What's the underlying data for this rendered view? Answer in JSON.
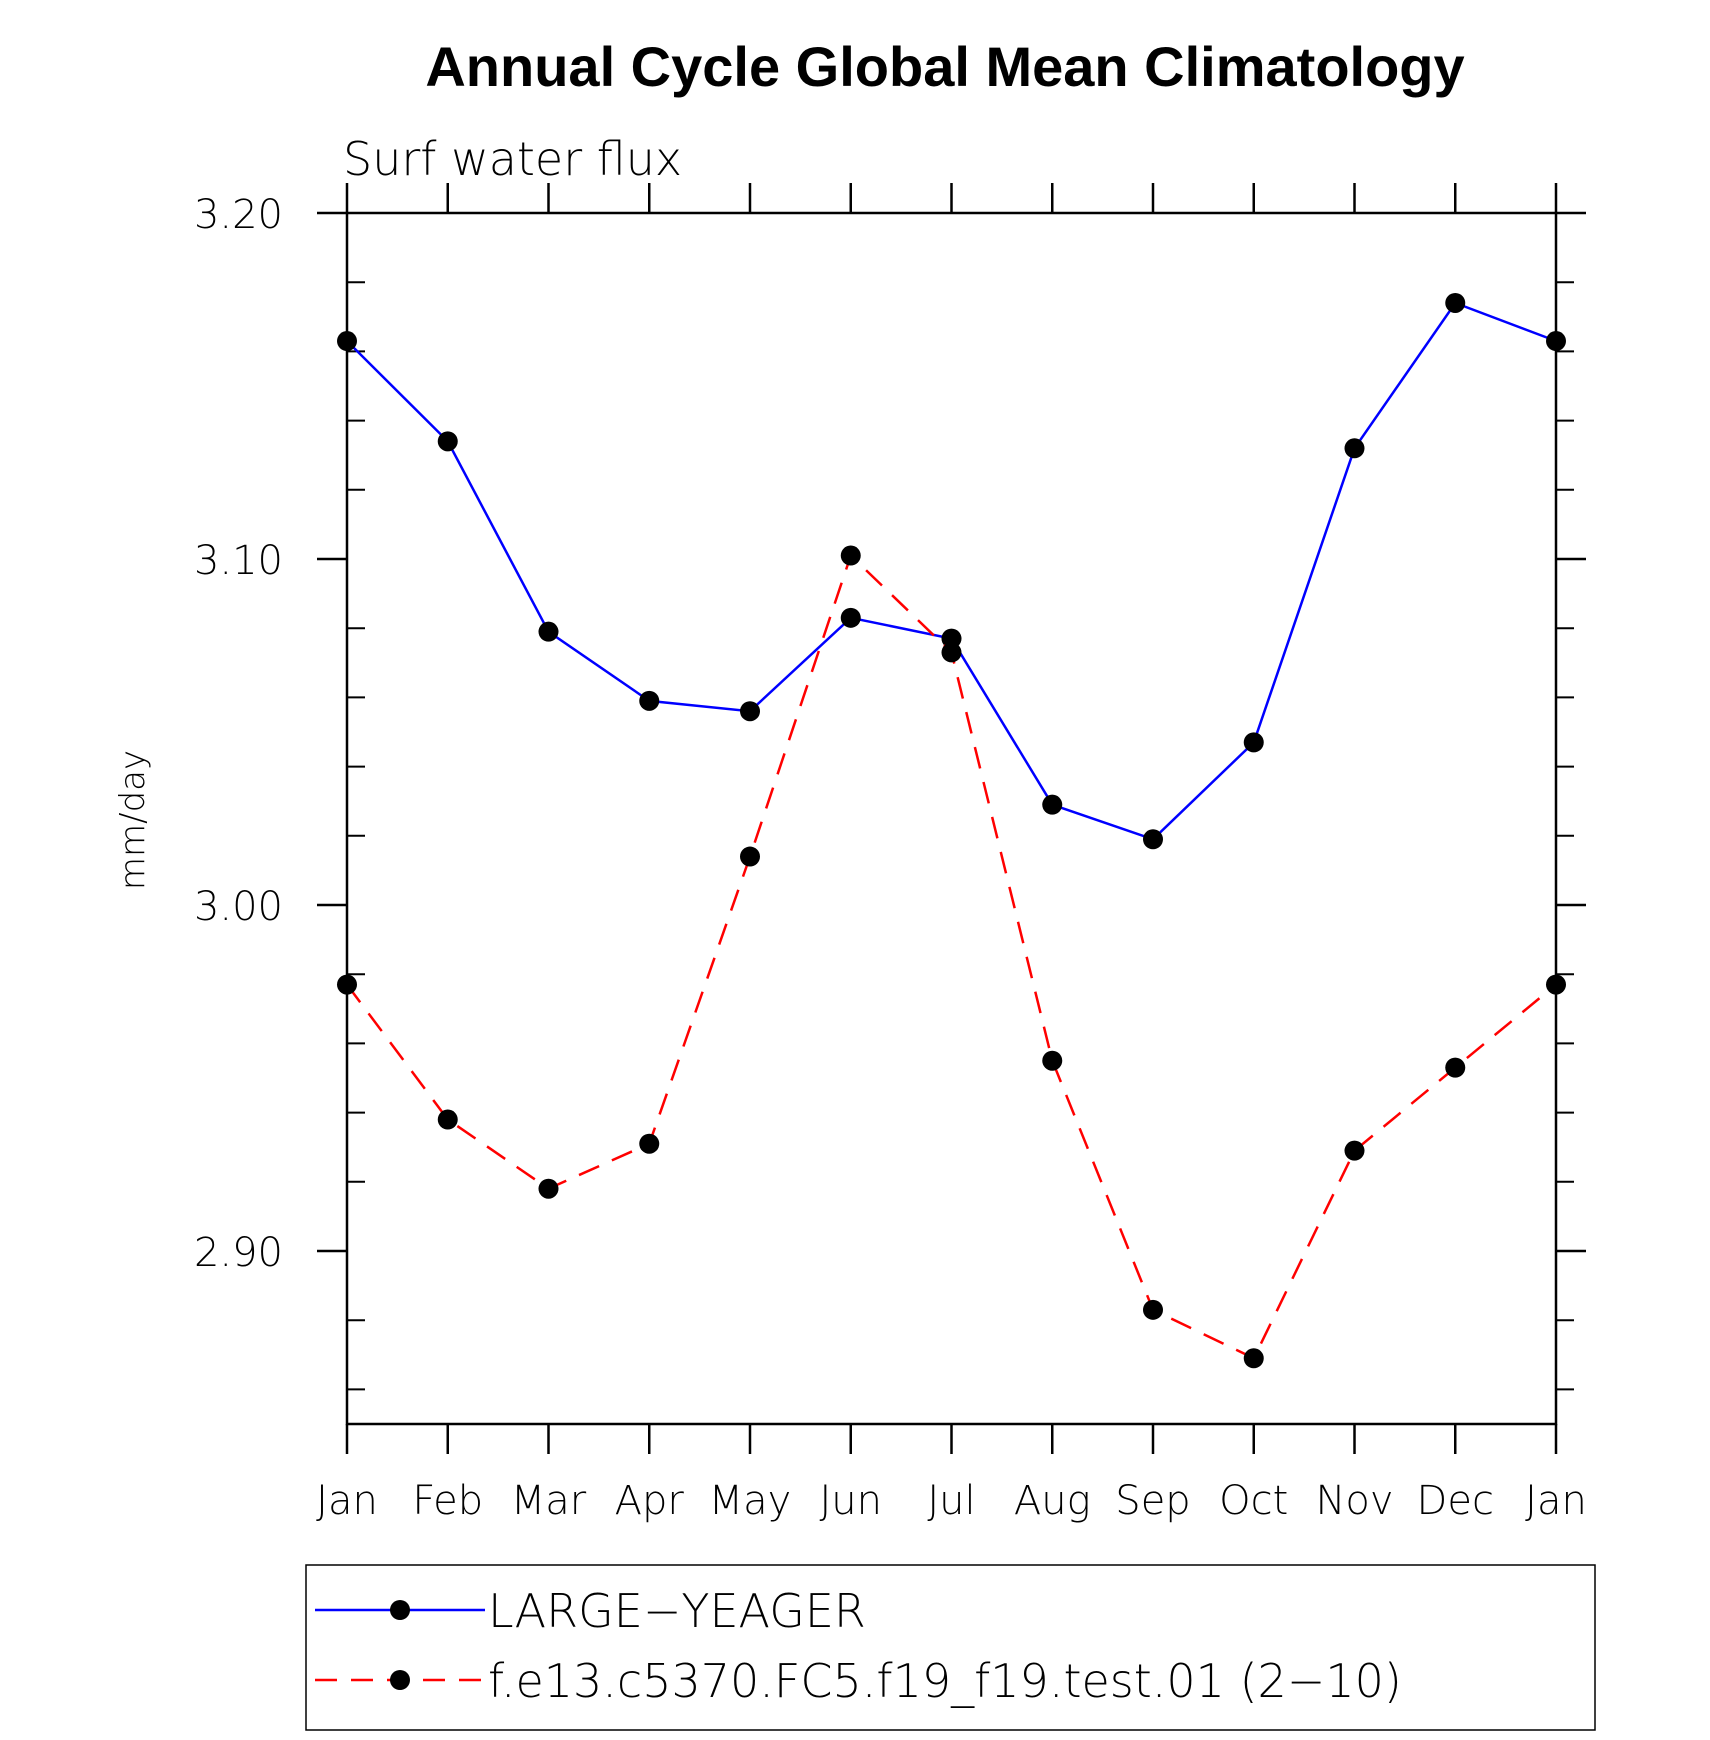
{
  "chart_data": {
    "type": "line",
    "title": "Annual Cycle Global Mean Climatology",
    "subtitle": "Surf water flux",
    "xlabel": "",
    "ylabel": "mm/day",
    "ylim": [
      2.85,
      3.2
    ],
    "yticks": [
      {
        "value": 2.9,
        "label": "2.90"
      },
      {
        "value": 3.0,
        "label": "3.00"
      },
      {
        "value": 3.1,
        "label": "3.10"
      },
      {
        "value": 3.2,
        "label": "3.20"
      }
    ],
    "categories": [
      "Jan",
      "Feb",
      "Mar",
      "Apr",
      "May",
      "Jun",
      "Jul",
      "Aug",
      "Sep",
      "Oct",
      "Nov",
      "Dec",
      "Jan"
    ],
    "series": [
      {
        "name": "LARGE−YEAGER",
        "color": "#0000ff",
        "dash": "solid",
        "values": [
          3.163,
          3.134,
          3.079,
          3.059,
          3.056,
          3.083,
          3.077,
          3.029,
          3.019,
          3.047,
          3.132,
          3.174,
          3.163
        ]
      },
      {
        "name": "f.e13.c5370.FC5.f19_f19.test.01 (2−10)",
        "color": "#ff0000",
        "dash": "dashed",
        "values": [
          2.977,
          2.938,
          2.918,
          2.931,
          3.014,
          3.101,
          3.073,
          2.955,
          2.883,
          2.869,
          2.929,
          2.953,
          2.977
        ]
      }
    ],
    "grid": false,
    "legend_position": "bottom"
  }
}
